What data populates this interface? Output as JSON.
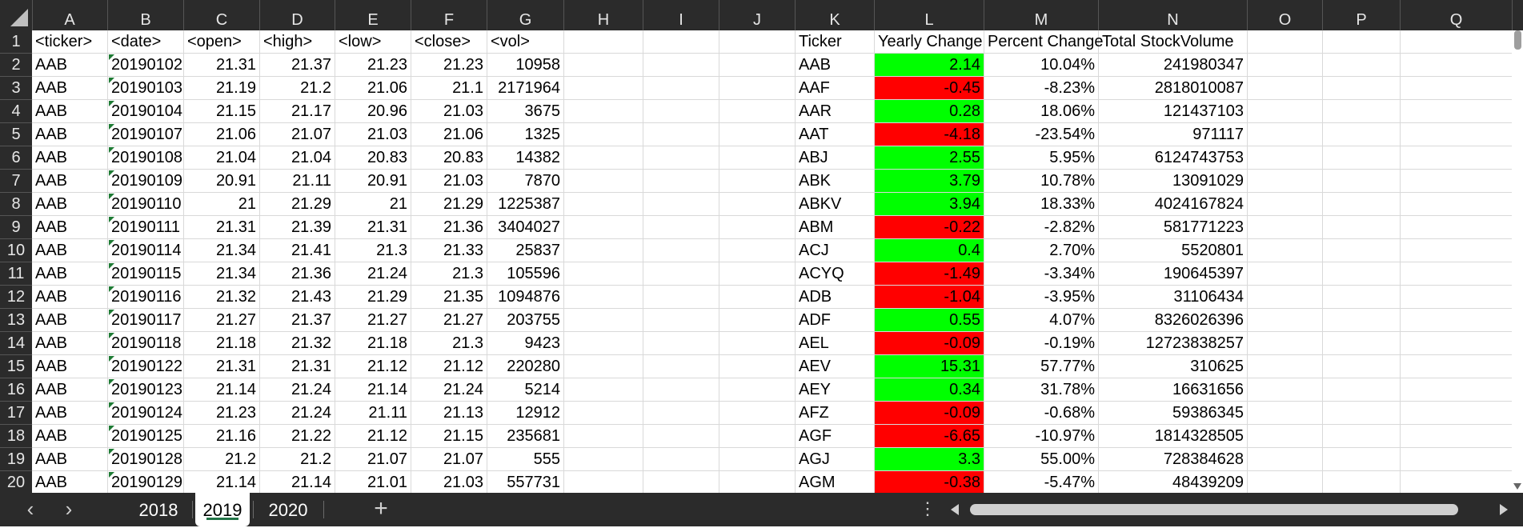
{
  "columns": [
    "A",
    "B",
    "C",
    "D",
    "E",
    "F",
    "G",
    "H",
    "I",
    "J",
    "K",
    "L",
    "M",
    "N",
    "O",
    "P",
    "Q"
  ],
  "header_row": {
    "number": "1",
    "left": [
      "<ticker>",
      "<date>",
      "<open>",
      "<high>",
      "<low>",
      "<close>",
      "<vol>"
    ],
    "right": [
      "Ticker",
      "Yearly Change",
      "Percent Change",
      "Total  StockVolume"
    ]
  },
  "rows": [
    {
      "n": "2",
      "ticker": "AAB",
      "date": "20190102",
      "open": "21.31",
      "high": "21.37",
      "low": "21.23",
      "close": "21.23",
      "vol": "10958",
      "k": "AAB",
      "l": "2.14",
      "l_status": "positive",
      "m": "10.04%",
      "nv": "241980347"
    },
    {
      "n": "3",
      "ticker": "AAB",
      "date": "20190103",
      "open": "21.19",
      "high": "21.2",
      "low": "21.06",
      "close": "21.1",
      "vol": "2171964",
      "k": "AAF",
      "l": "-0.45",
      "l_status": "negative",
      "m": "-8.23%",
      "nv": "2818010087"
    },
    {
      "n": "4",
      "ticker": "AAB",
      "date": "20190104",
      "open": "21.15",
      "high": "21.17",
      "low": "20.96",
      "close": "21.03",
      "vol": "3675",
      "k": "AAR",
      "l": "0.28",
      "l_status": "positive",
      "m": "18.06%",
      "nv": "121437103"
    },
    {
      "n": "5",
      "ticker": "AAB",
      "date": "20190107",
      "open": "21.06",
      "high": "21.07",
      "low": "21.03",
      "close": "21.06",
      "vol": "1325",
      "k": "AAT",
      "l": "-4.18",
      "l_status": "negative",
      "m": "-23.54%",
      "nv": "971117"
    },
    {
      "n": "6",
      "ticker": "AAB",
      "date": "20190108",
      "open": "21.04",
      "high": "21.04",
      "low": "20.83",
      "close": "20.83",
      "vol": "14382",
      "k": "ABJ",
      "l": "2.55",
      "l_status": "positive",
      "m": "5.95%",
      "nv": "6124743753"
    },
    {
      "n": "7",
      "ticker": "AAB",
      "date": "20190109",
      "open": "20.91",
      "high": "21.11",
      "low": "20.91",
      "close": "21.03",
      "vol": "7870",
      "k": "ABK",
      "l": "3.79",
      "l_status": "positive",
      "m": "10.78%",
      "nv": "13091029"
    },
    {
      "n": "8",
      "ticker": "AAB",
      "date": "20190110",
      "open": "21",
      "high": "21.29",
      "low": "21",
      "close": "21.29",
      "vol": "1225387",
      "k": "ABKV",
      "l": "3.94",
      "l_status": "positive",
      "m": "18.33%",
      "nv": "4024167824"
    },
    {
      "n": "9",
      "ticker": "AAB",
      "date": "20190111",
      "open": "21.31",
      "high": "21.39",
      "low": "21.31",
      "close": "21.36",
      "vol": "3404027",
      "k": "ABM",
      "l": "-0.22",
      "l_status": "negative",
      "m": "-2.82%",
      "nv": "581771223"
    },
    {
      "n": "10",
      "ticker": "AAB",
      "date": "20190114",
      "open": "21.34",
      "high": "21.41",
      "low": "21.3",
      "close": "21.33",
      "vol": "25837",
      "k": "ACJ",
      "l": "0.4",
      "l_status": "positive",
      "m": "2.70%",
      "nv": "5520801"
    },
    {
      "n": "11",
      "ticker": "AAB",
      "date": "20190115",
      "open": "21.34",
      "high": "21.36",
      "low": "21.24",
      "close": "21.3",
      "vol": "105596",
      "k": "ACYQ",
      "l": "-1.49",
      "l_status": "negative",
      "m": "-3.34%",
      "nv": "190645397"
    },
    {
      "n": "12",
      "ticker": "AAB",
      "date": "20190116",
      "open": "21.32",
      "high": "21.43",
      "low": "21.29",
      "close": "21.35",
      "vol": "1094876",
      "k": "ADB",
      "l": "-1.04",
      "l_status": "negative",
      "m": "-3.95%",
      "nv": "31106434"
    },
    {
      "n": "13",
      "ticker": "AAB",
      "date": "20190117",
      "open": "21.27",
      "high": "21.37",
      "low": "21.27",
      "close": "21.27",
      "vol": "203755",
      "k": "ADF",
      "l": "0.55",
      "l_status": "positive",
      "m": "4.07%",
      "nv": "8326026396"
    },
    {
      "n": "14",
      "ticker": "AAB",
      "date": "20190118",
      "open": "21.18",
      "high": "21.32",
      "low": "21.18",
      "close": "21.3",
      "vol": "9423",
      "k": "AEL",
      "l": "-0.09",
      "l_status": "negative",
      "m": "-0.19%",
      "nv": "12723838257"
    },
    {
      "n": "15",
      "ticker": "AAB",
      "date": "20190122",
      "open": "21.31",
      "high": "21.31",
      "low": "21.12",
      "close": "21.12",
      "vol": "220280",
      "k": "AEV",
      "l": "15.31",
      "l_status": "positive",
      "m": "57.77%",
      "nv": "310625"
    },
    {
      "n": "16",
      "ticker": "AAB",
      "date": "20190123",
      "open": "21.14",
      "high": "21.24",
      "low": "21.14",
      "close": "21.24",
      "vol": "5214",
      "k": "AEY",
      "l": "0.34",
      "l_status": "positive",
      "m": "31.78%",
      "nv": "16631656"
    },
    {
      "n": "17",
      "ticker": "AAB",
      "date": "20190124",
      "open": "21.23",
      "high": "21.24",
      "low": "21.11",
      "close": "21.13",
      "vol": "12912",
      "k": "AFZ",
      "l": "-0.09",
      "l_status": "negative",
      "m": "-0.68%",
      "nv": "59386345"
    },
    {
      "n": "18",
      "ticker": "AAB",
      "date": "20190125",
      "open": "21.16",
      "high": "21.22",
      "low": "21.12",
      "close": "21.15",
      "vol": "235681",
      "k": "AGF",
      "l": "-6.65",
      "l_status": "negative",
      "m": "-10.97%",
      "nv": "1814328505"
    },
    {
      "n": "19",
      "ticker": "AAB",
      "date": "20190128",
      "open": "21.2",
      "high": "21.2",
      "low": "21.07",
      "close": "21.07",
      "vol": "555",
      "k": "AGJ",
      "l": "3.3",
      "l_status": "positive",
      "m": "55.00%",
      "nv": "728384628"
    },
    {
      "n": "20",
      "ticker": "AAB",
      "date": "20190129",
      "open": "21.14",
      "high": "21.14",
      "low": "21.01",
      "close": "21.03",
      "vol": "557731",
      "k": "AGM",
      "l": "-0.38",
      "l_status": "negative",
      "m": "-5.47%",
      "nv": "48439209"
    }
  ],
  "sheet_tabs": [
    {
      "label": "2018",
      "active": false
    },
    {
      "label": "2019",
      "active": true
    },
    {
      "label": "2020",
      "active": false
    }
  ],
  "controls": {
    "prev_sheet": "‹",
    "next_sheet": "›",
    "add_sheet": "+",
    "more": "⋮"
  },
  "colors": {
    "positive": "#00ff00",
    "negative": "#ff0000",
    "header_bg": "#2b2b2b",
    "active_tab_underline": "#217346"
  }
}
